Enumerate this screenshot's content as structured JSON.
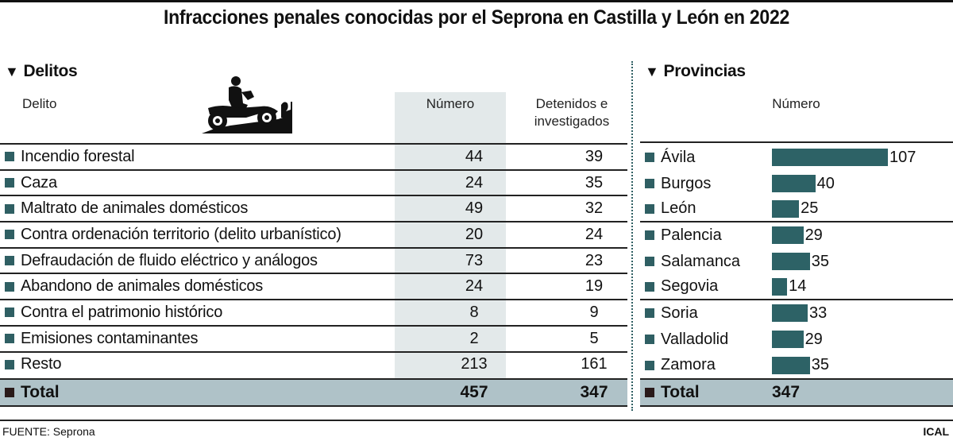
{
  "title": "Infracciones penales conocidas por el Seprona en Castilla y León en 2022",
  "delitos": {
    "section_title": "Delitos",
    "headers": {
      "delito": "Delito",
      "numero": "Número",
      "detenidos_line1": "Detenidos e",
      "detenidos_line2": "investigados"
    },
    "rows": [
      {
        "label": "Incendio forestal",
        "numero": "44",
        "detenidos": "39"
      },
      {
        "label": "Caza",
        "numero": "24",
        "detenidos": "35"
      },
      {
        "label": "Maltrato de animales domésticos",
        "numero": "49",
        "detenidos": "32"
      },
      {
        "label": "Contra ordenación territorio (delito urbanístico)",
        "numero": "20",
        "detenidos": "24"
      },
      {
        "label": "Defraudación de fluido eléctrico y análogos",
        "numero": "73",
        "detenidos": "23"
      },
      {
        "label": "Abandono de animales domésticos",
        "numero": "24",
        "detenidos": "19"
      },
      {
        "label": "Contra el patrimonio histórico",
        "numero": "8",
        "detenidos": "9"
      },
      {
        "label": "Emisiones contaminantes",
        "numero": "2",
        "detenidos": "5"
      },
      {
        "label": "Resto",
        "numero": "213",
        "detenidos": "161"
      }
    ],
    "total": {
      "label": "Total",
      "numero": "457",
      "detenidos": "347"
    },
    "icon": "motorcycle-rider-icon"
  },
  "provincias": {
    "section_title": "Provincias",
    "header": "Número",
    "total": {
      "label": "Total",
      "value": "347"
    }
  },
  "chart_data": {
    "type": "bar",
    "orientation": "horizontal",
    "title": "Provincias",
    "xlabel": "Número",
    "ylabel": "",
    "categories": [
      "Ávila",
      "Burgos",
      "León",
      "Palencia",
      "Salamanca",
      "Segovia",
      "Soria",
      "Valladolid",
      "Zamora"
    ],
    "values": [
      107,
      40,
      25,
      29,
      35,
      14,
      33,
      29,
      35
    ],
    "data_labels": true,
    "grid": false,
    "xlim": [
      0,
      107
    ],
    "total": 347,
    "bar_color": "#2d6266"
  },
  "footer": {
    "source": "FUENTE: Seprona",
    "credit": "ICAL"
  },
  "colors": {
    "bar": "#2d6266",
    "bullet": "#2f5f63",
    "shade": "#e3e9ea",
    "total_bg": "#afc2c8"
  }
}
